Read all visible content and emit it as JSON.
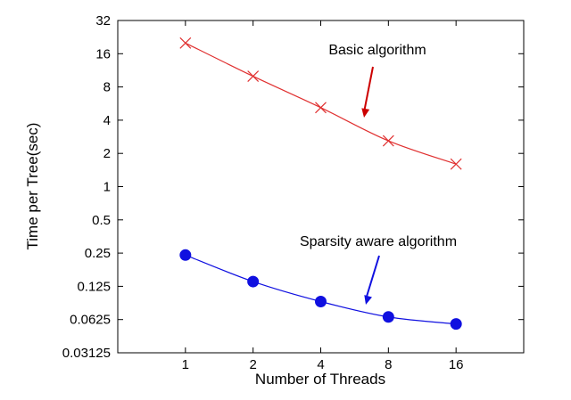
{
  "chart_data": {
    "type": "line",
    "xlabel": "Number of Threads",
    "ylabel": "Time per Tree(sec)",
    "x_scale": "log2",
    "y_scale": "log2",
    "x": [
      1,
      2,
      4,
      8,
      16
    ],
    "x_tick_labels": [
      "1",
      "2",
      "4",
      "8",
      "16"
    ],
    "xlim": [
      0.5,
      32
    ],
    "y_tick_values": [
      0.03125,
      0.0625,
      0.125,
      0.25,
      0.5,
      1,
      2,
      4,
      8,
      16,
      32
    ],
    "y_tick_labels": [
      "0.03125",
      "0.0625",
      "0.125",
      "0.25",
      "0.5",
      "1",
      "2",
      "4",
      "8",
      "16",
      "32"
    ],
    "ylim": [
      0.03125,
      32
    ],
    "series": [
      {
        "name": "Basic algorithm",
        "color": "#e03030",
        "marker": "x",
        "values": [
          20,
          10,
          5.2,
          2.6,
          1.6
        ]
      },
      {
        "name": "Sparsity aware algorithm",
        "color": "#1010e0",
        "marker": "circle",
        "values": [
          0.24,
          0.138,
          0.091,
          0.066,
          0.057
        ]
      }
    ],
    "annotations": [
      {
        "text": "Basic algorithm",
        "color": "#cc0000",
        "points_to_series": 0
      },
      {
        "text": "Sparsity aware algorithm",
        "color": "#1010e0",
        "points_to_series": 1
      }
    ]
  }
}
